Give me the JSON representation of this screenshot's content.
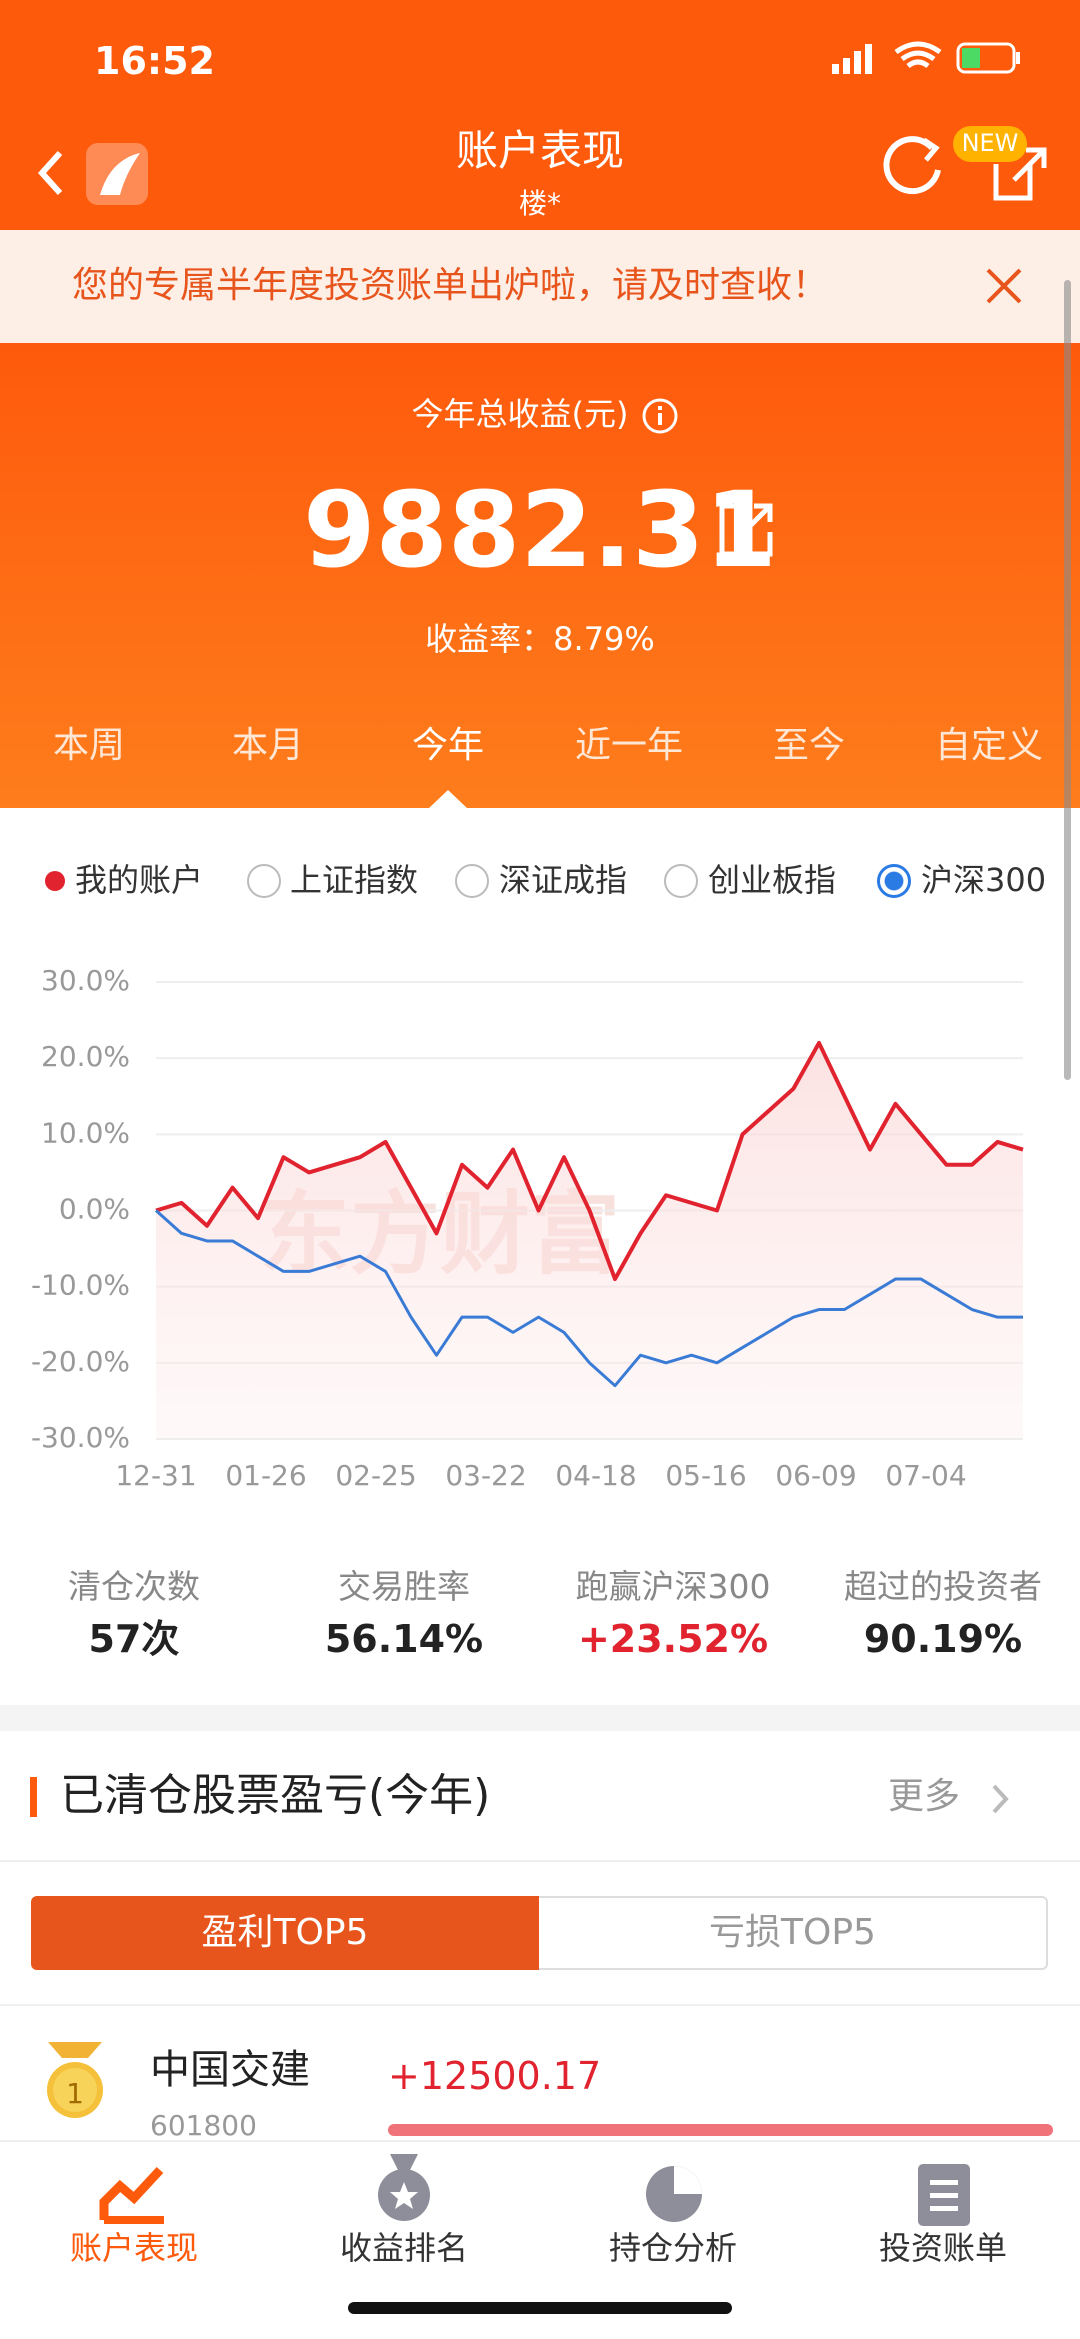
{
  "status_bar": {
    "time": "16:52"
  },
  "header": {
    "title": "账户表现",
    "subtitle": "楼*",
    "badge": "NEW"
  },
  "banner": {
    "text": "您的专属半年度投资账单出炉啦，请及时查收！"
  },
  "summary": {
    "label": "今年总收益(元)",
    "value": "9882.31",
    "rate": "收益率：8.79%"
  },
  "tabs": [
    "本周",
    "本月",
    "今年",
    "近一年",
    "至今",
    "自定义"
  ],
  "legend": [
    "我的账户",
    "上证指数",
    "深证成指",
    "创业板指",
    "沪深300"
  ],
  "chart": {
    "type": "line",
    "watermark": "东方财富",
    "ylim": [
      -30,
      30
    ],
    "yticks": [
      {
        "value": 30,
        "label": "30.0%"
      },
      {
        "value": 20,
        "label": "20.0%"
      },
      {
        "value": 10,
        "label": "10.0%"
      },
      {
        "value": 0,
        "label": "0.0%"
      },
      {
        "value": -10,
        "label": "-10.0%"
      },
      {
        "value": -20,
        "label": "-20.0%"
      },
      {
        "value": -30,
        "label": "-30.0%"
      }
    ],
    "x_labels": [
      "12-31",
      "01-26",
      "02-25",
      "03-22",
      "04-18",
      "05-16",
      "06-09",
      "07-04"
    ],
    "series": [
      {
        "color": "#e0232e",
        "values": [
          0,
          1,
          -2,
          3,
          -1,
          7,
          5,
          6,
          7,
          9,
          3,
          -3,
          6,
          3,
          8,
          0,
          7,
          0,
          -9,
          -3,
          2,
          1,
          0,
          10,
          13,
          16,
          22,
          15,
          8,
          14,
          10,
          6,
          6,
          9,
          8
        ]
      },
      {
        "color": "#3a7bd5",
        "values": [
          0,
          -3,
          -4,
          -4,
          -6,
          -8,
          -8,
          -7,
          -6,
          -8,
          -14,
          -19,
          -14,
          -14,
          -16,
          -14,
          -16,
          -20,
          -23,
          -19,
          -20,
          -19,
          -20,
          -18,
          -16,
          -14,
          -13,
          -13,
          -11,
          -9,
          -9,
          -11,
          -13,
          -14,
          -14
        ]
      }
    ]
  },
  "stats": [
    {
      "label": "清仓次数",
      "value": "57次"
    },
    {
      "label": "交易胜率",
      "value": "56.14%"
    },
    {
      "label": "跑赢沪深300",
      "value": "+23.52%"
    },
    {
      "label": "超过的投资者",
      "value": "90.19%"
    }
  ],
  "section": {
    "title": "已清仓股票盈亏(今年)",
    "more": "更多"
  },
  "toggle": [
    "盈利TOP5",
    "亏损TOP5"
  ],
  "list": [
    {
      "rank": "1",
      "name": "中国交建",
      "code": "601800",
      "profit": "+12500.17"
    }
  ],
  "nav": [
    "账户表现",
    "收益排名",
    "持仓分析",
    "投资账单"
  ]
}
